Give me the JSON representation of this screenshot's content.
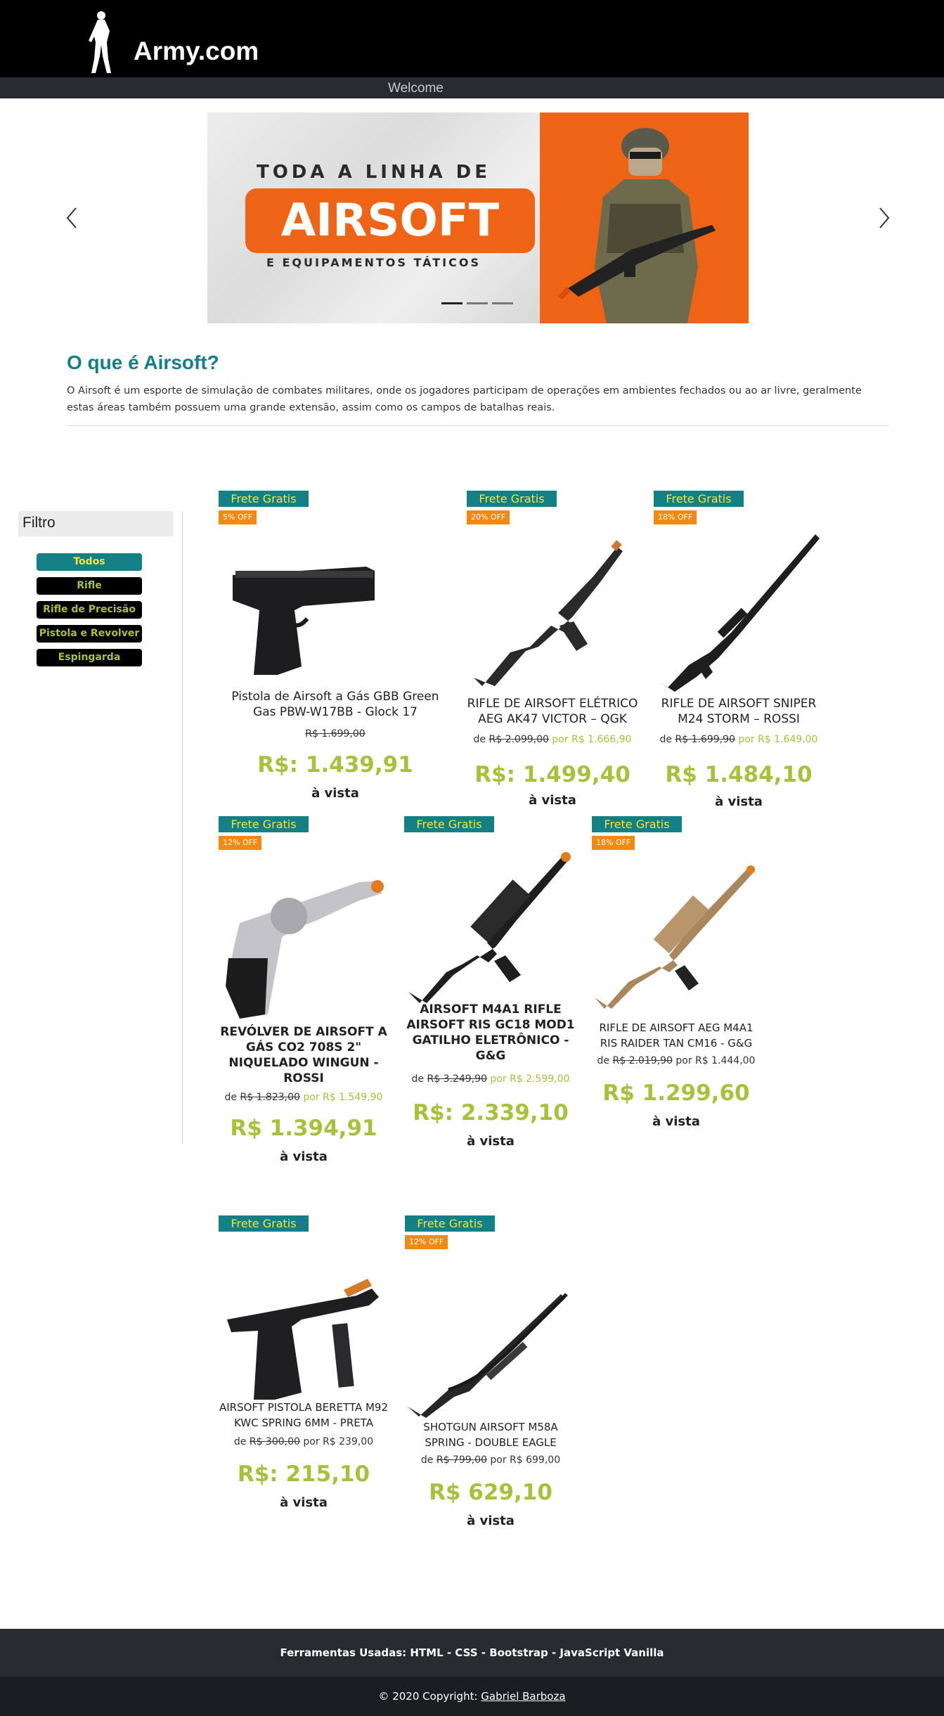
{
  "header": {
    "logo_text": "Army.com",
    "nav_welcome": "Welcome"
  },
  "banner": {
    "line1": "TODA A LINHA DE",
    "big": "AIRSOFT",
    "line2": "E EQUIPAMENTOS TÁTICOS",
    "slide_count": 3,
    "active_slide": 1
  },
  "about": {
    "title": "O que é Airsoft?",
    "text": "O Airsoft é um esporte de simulação de combates militares, onde os jogadores participam de operações em ambientes fechados ou ao ar livre, geralmente estas áreas também possuem uma grande extensão, assim como os campos de batalhas reais."
  },
  "filter": {
    "title": "Filtro",
    "items": [
      "Todos",
      "Rifle",
      "Rifle de Precisão",
      "Pistola e Revolver",
      "Espingarda"
    ]
  },
  "products": [
    {
      "frete": "Frete Gratis",
      "off": "5% OFF",
      "name": "Pistola de Airsoft a Gás GBB Green Gas PBW-W17BB - Glock 17",
      "de": "",
      "old": "R$ 1.699,00",
      "por": "",
      "price": "R$: 1.439,91",
      "vista": "à vista"
    },
    {
      "frete": "Frete Gratis",
      "off": "20% OFF",
      "name": "RIFLE DE AIRSOFT ELÉTRICO AEG AK47 VICTOR – QGK",
      "de": "de",
      "old": "R$ 2.099,00",
      "por": "por R$ 1.666,90",
      "price": "R$: 1.499,40",
      "vista": "à vista"
    },
    {
      "frete": "Frete Gratis",
      "off": "18% OFF",
      "name": "RIFLE DE AIRSOFT SNIPER M24 STORM – ROSSI",
      "de": "de",
      "old": "R$ 1.699,90",
      "por": "por R$ 1.649,00",
      "price": "R$ 1.484,10",
      "vista": "à vista"
    },
    {
      "frete": "Frete Gratis",
      "off": "12% OFF",
      "name": "REVÓLVER DE AIRSOFT A GÁS CO2 708S 2\" NIQUELADO WINGUN - ROSSI",
      "de": "de",
      "old": "R$ 1.823,00",
      "por": "por R$ 1.549,90",
      "price": "R$ 1.394,91",
      "vista": "à vista"
    },
    {
      "frete": "Frete Gratis",
      "off": "",
      "name": "AIRSOFT M4A1 RIFLE AIRSOFT RIS GC18 MOD1 GATILHO ELETRÔNICO - G&G",
      "de": "de",
      "old": "R$ 3.249,90",
      "por": "por R$ 2.599,00",
      "price": "R$: 2.339,10",
      "vista": "à vista"
    },
    {
      "frete": "Frete Gratis",
      "off": "18% OFF",
      "name": "RIFLE DE AIRSOFT AEG M4A1 RIS RAIDER TAN CM16 - G&G",
      "de": "de",
      "old": "R$ 2.019,90",
      "por": "por R$ 1.444,00",
      "price": "R$ 1.299,60",
      "vista": "à vista"
    },
    {
      "frete": "Frete Gratis",
      "off": "",
      "name": "AIRSOFT PISTOLA BERETTA M92 KWC SPRING 6MM - PRETA",
      "de": "de",
      "old": "R$ 300,00",
      "por": "por R$ 239,00",
      "price": "R$: 215,10",
      "vista": "à vista"
    },
    {
      "frete": "Frete Gratis",
      "off": "12% OFF",
      "name": "SHOTGUN AIRSOFT M58A SPRING - DOUBLE EAGLE",
      "de": "de",
      "old": "R$ 799,00",
      "por": "por R$ 699,00",
      "price": "R$ 629,10",
      "vista": "à vista"
    }
  ],
  "footer": {
    "tools_label": "Ferramentas Usadas:",
    "tools": "HTML - CSS - Bootstrap - JavaScript Vanilla",
    "copyright": "© 2020 Copyright:",
    "author": "Gabriel Barboza"
  },
  "colors": {
    "teal": "#138086",
    "green": "#a6c23a",
    "orange": "#f28a12",
    "yellow": "#f5e53b"
  }
}
